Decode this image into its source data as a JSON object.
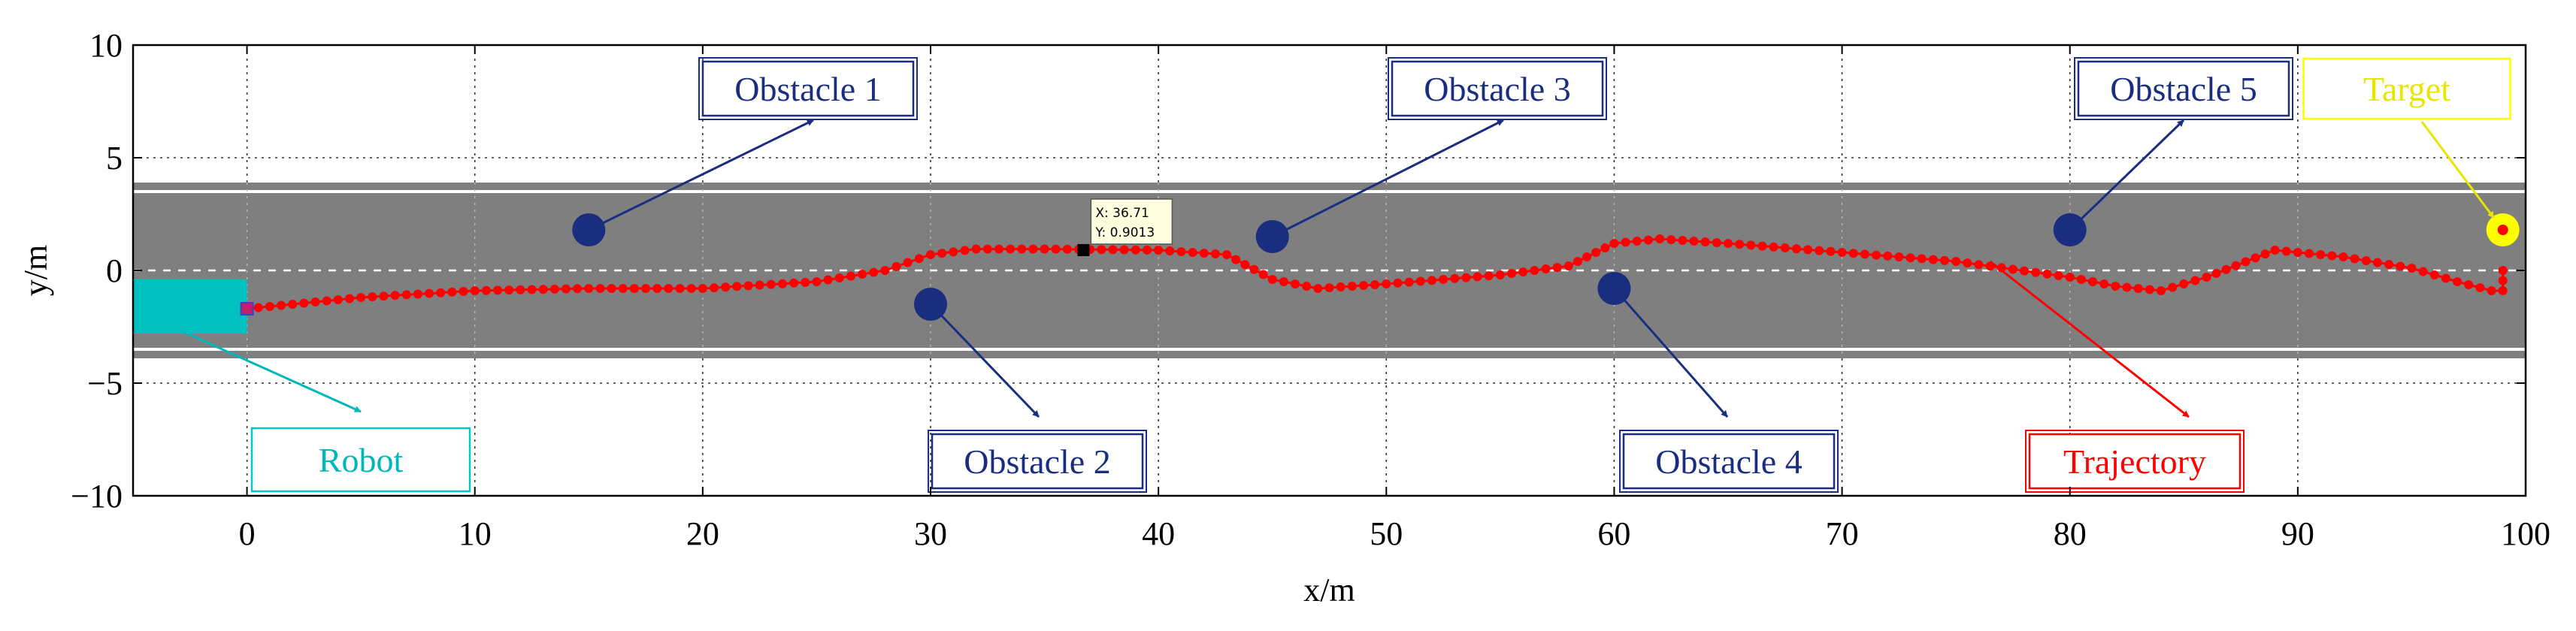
{
  "chart_data": {
    "type": "scatter",
    "xlabel": "x/m",
    "ylabel": "y/m",
    "xlim": [
      -5,
      100
    ],
    "ylim": [
      -10,
      10
    ],
    "xticks": [
      0,
      10,
      20,
      30,
      40,
      50,
      60,
      70,
      80,
      90,
      100
    ],
    "yticks": [
      -10,
      -5,
      0,
      5,
      10
    ],
    "xtick_labels": [
      "0",
      "10",
      "20",
      "30",
      "40",
      "50",
      "60",
      "70",
      "80",
      "90",
      "100"
    ],
    "ytick_labels": [
      "−10",
      "−5",
      "0",
      "5",
      "10"
    ],
    "grid": "dotted",
    "road": {
      "y_outer": [
        -3.9,
        3.9
      ],
      "y_inner_lines": [
        -3.5,
        3.5
      ],
      "y_centerline": 0,
      "color": "#7f7f7f"
    },
    "robot": {
      "label": "Robot",
      "x_range": [
        -5,
        0
      ],
      "y_range": [
        -2.8,
        -0.4
      ],
      "color": "#00c0c0"
    },
    "target": {
      "label": "Target",
      "x": 99,
      "y": 1.8,
      "color": "#ffff00"
    },
    "obstacles": [
      {
        "label": "Obstacle 1",
        "x": 15,
        "y": 1.8
      },
      {
        "label": "Obstacle 2",
        "x": 30,
        "y": -1.5
      },
      {
        "label": "Obstacle 3",
        "x": 45,
        "y": 1.5
      },
      {
        "label": "Obstacle 4",
        "x": 60,
        "y": -0.8
      },
      {
        "label": "Obstacle 5",
        "x": 80,
        "y": 1.8
      }
    ],
    "obstacle_color": "#1a2e80",
    "trajectory": {
      "label": "Trajectory",
      "color": "#ff0000",
      "x": [
        0,
        5,
        10,
        15,
        20,
        25,
        28,
        30,
        32,
        35,
        40,
        43,
        45,
        47,
        50,
        55,
        58,
        60,
        62,
        65,
        70,
        75,
        80,
        82,
        84,
        86,
        89,
        92,
        95,
        97,
        98.5,
        99,
        99
      ],
      "y": [
        -1.7,
        -1.2,
        -0.9,
        -0.8,
        -0.8,
        -0.5,
        0.0,
        0.7,
        0.95,
        0.95,
        0.9,
        0.7,
        -0.4,
        -0.8,
        -0.6,
        -0.2,
        0.2,
        1.2,
        1.4,
        1.2,
        0.8,
        0.4,
        -0.3,
        -0.7,
        -0.9,
        -0.3,
        0.9,
        0.6,
        0.1,
        -0.5,
        -0.9,
        -0.9,
        0.0
      ]
    },
    "datatip": {
      "x_text": "X: 36.71",
      "y_text": "Y: 0.9013",
      "x": 36.71,
      "y": 0.9013
    }
  }
}
